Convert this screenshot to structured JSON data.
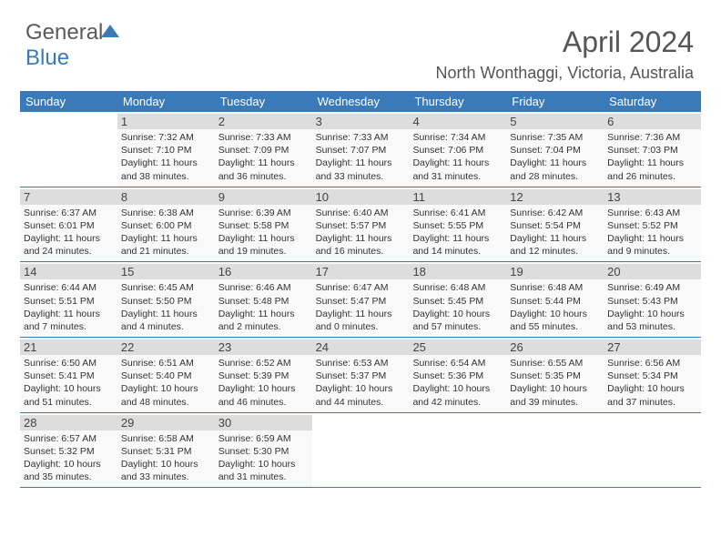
{
  "logo": {
    "part1": "General",
    "part2": "Blue"
  },
  "title": "April 2024",
  "location": "North Wonthaggi, Victoria, Australia",
  "colors": {
    "accent": "#3b7ab8",
    "header_text": "#ffffff",
    "body_text": "#333333",
    "daynum_bg": "#dddddd",
    "cell_bg": "#f9f9f9"
  },
  "day_headers": [
    "Sunday",
    "Monday",
    "Tuesday",
    "Wednesday",
    "Thursday",
    "Friday",
    "Saturday"
  ],
  "weeks": [
    [
      null,
      {
        "n": "1",
        "sr": "Sunrise: 7:32 AM",
        "ss": "Sunset: 7:10 PM",
        "d1": "Daylight: 11 hours",
        "d2": "and 38 minutes."
      },
      {
        "n": "2",
        "sr": "Sunrise: 7:33 AM",
        "ss": "Sunset: 7:09 PM",
        "d1": "Daylight: 11 hours",
        "d2": "and 36 minutes."
      },
      {
        "n": "3",
        "sr": "Sunrise: 7:33 AM",
        "ss": "Sunset: 7:07 PM",
        "d1": "Daylight: 11 hours",
        "d2": "and 33 minutes."
      },
      {
        "n": "4",
        "sr": "Sunrise: 7:34 AM",
        "ss": "Sunset: 7:06 PM",
        "d1": "Daylight: 11 hours",
        "d2": "and 31 minutes."
      },
      {
        "n": "5",
        "sr": "Sunrise: 7:35 AM",
        "ss": "Sunset: 7:04 PM",
        "d1": "Daylight: 11 hours",
        "d2": "and 28 minutes."
      },
      {
        "n": "6",
        "sr": "Sunrise: 7:36 AM",
        "ss": "Sunset: 7:03 PM",
        "d1": "Daylight: 11 hours",
        "d2": "and 26 minutes."
      }
    ],
    [
      {
        "n": "7",
        "sr": "Sunrise: 6:37 AM",
        "ss": "Sunset: 6:01 PM",
        "d1": "Daylight: 11 hours",
        "d2": "and 24 minutes."
      },
      {
        "n": "8",
        "sr": "Sunrise: 6:38 AM",
        "ss": "Sunset: 6:00 PM",
        "d1": "Daylight: 11 hours",
        "d2": "and 21 minutes."
      },
      {
        "n": "9",
        "sr": "Sunrise: 6:39 AM",
        "ss": "Sunset: 5:58 PM",
        "d1": "Daylight: 11 hours",
        "d2": "and 19 minutes."
      },
      {
        "n": "10",
        "sr": "Sunrise: 6:40 AM",
        "ss": "Sunset: 5:57 PM",
        "d1": "Daylight: 11 hours",
        "d2": "and 16 minutes."
      },
      {
        "n": "11",
        "sr": "Sunrise: 6:41 AM",
        "ss": "Sunset: 5:55 PM",
        "d1": "Daylight: 11 hours",
        "d2": "and 14 minutes."
      },
      {
        "n": "12",
        "sr": "Sunrise: 6:42 AM",
        "ss": "Sunset: 5:54 PM",
        "d1": "Daylight: 11 hours",
        "d2": "and 12 minutes."
      },
      {
        "n": "13",
        "sr": "Sunrise: 6:43 AM",
        "ss": "Sunset: 5:52 PM",
        "d1": "Daylight: 11 hours",
        "d2": "and 9 minutes."
      }
    ],
    [
      {
        "n": "14",
        "sr": "Sunrise: 6:44 AM",
        "ss": "Sunset: 5:51 PM",
        "d1": "Daylight: 11 hours",
        "d2": "and 7 minutes."
      },
      {
        "n": "15",
        "sr": "Sunrise: 6:45 AM",
        "ss": "Sunset: 5:50 PM",
        "d1": "Daylight: 11 hours",
        "d2": "and 4 minutes."
      },
      {
        "n": "16",
        "sr": "Sunrise: 6:46 AM",
        "ss": "Sunset: 5:48 PM",
        "d1": "Daylight: 11 hours",
        "d2": "and 2 minutes."
      },
      {
        "n": "17",
        "sr": "Sunrise: 6:47 AM",
        "ss": "Sunset: 5:47 PM",
        "d1": "Daylight: 11 hours",
        "d2": "and 0 minutes."
      },
      {
        "n": "18",
        "sr": "Sunrise: 6:48 AM",
        "ss": "Sunset: 5:45 PM",
        "d1": "Daylight: 10 hours",
        "d2": "and 57 minutes."
      },
      {
        "n": "19",
        "sr": "Sunrise: 6:48 AM",
        "ss": "Sunset: 5:44 PM",
        "d1": "Daylight: 10 hours",
        "d2": "and 55 minutes."
      },
      {
        "n": "20",
        "sr": "Sunrise: 6:49 AM",
        "ss": "Sunset: 5:43 PM",
        "d1": "Daylight: 10 hours",
        "d2": "and 53 minutes."
      }
    ],
    [
      {
        "n": "21",
        "sr": "Sunrise: 6:50 AM",
        "ss": "Sunset: 5:41 PM",
        "d1": "Daylight: 10 hours",
        "d2": "and 51 minutes."
      },
      {
        "n": "22",
        "sr": "Sunrise: 6:51 AM",
        "ss": "Sunset: 5:40 PM",
        "d1": "Daylight: 10 hours",
        "d2": "and 48 minutes."
      },
      {
        "n": "23",
        "sr": "Sunrise: 6:52 AM",
        "ss": "Sunset: 5:39 PM",
        "d1": "Daylight: 10 hours",
        "d2": "and 46 minutes."
      },
      {
        "n": "24",
        "sr": "Sunrise: 6:53 AM",
        "ss": "Sunset: 5:37 PM",
        "d1": "Daylight: 10 hours",
        "d2": "and 44 minutes."
      },
      {
        "n": "25",
        "sr": "Sunrise: 6:54 AM",
        "ss": "Sunset: 5:36 PM",
        "d1": "Daylight: 10 hours",
        "d2": "and 42 minutes."
      },
      {
        "n": "26",
        "sr": "Sunrise: 6:55 AM",
        "ss": "Sunset: 5:35 PM",
        "d1": "Daylight: 10 hours",
        "d2": "and 39 minutes."
      },
      {
        "n": "27",
        "sr": "Sunrise: 6:56 AM",
        "ss": "Sunset: 5:34 PM",
        "d1": "Daylight: 10 hours",
        "d2": "and 37 minutes."
      }
    ],
    [
      {
        "n": "28",
        "sr": "Sunrise: 6:57 AM",
        "ss": "Sunset: 5:32 PM",
        "d1": "Daylight: 10 hours",
        "d2": "and 35 minutes."
      },
      {
        "n": "29",
        "sr": "Sunrise: 6:58 AM",
        "ss": "Sunset: 5:31 PM",
        "d1": "Daylight: 10 hours",
        "d2": "and 33 minutes."
      },
      {
        "n": "30",
        "sr": "Sunrise: 6:59 AM",
        "ss": "Sunset: 5:30 PM",
        "d1": "Daylight: 10 hours",
        "d2": "and 31 minutes."
      },
      null,
      null,
      null,
      null
    ]
  ]
}
